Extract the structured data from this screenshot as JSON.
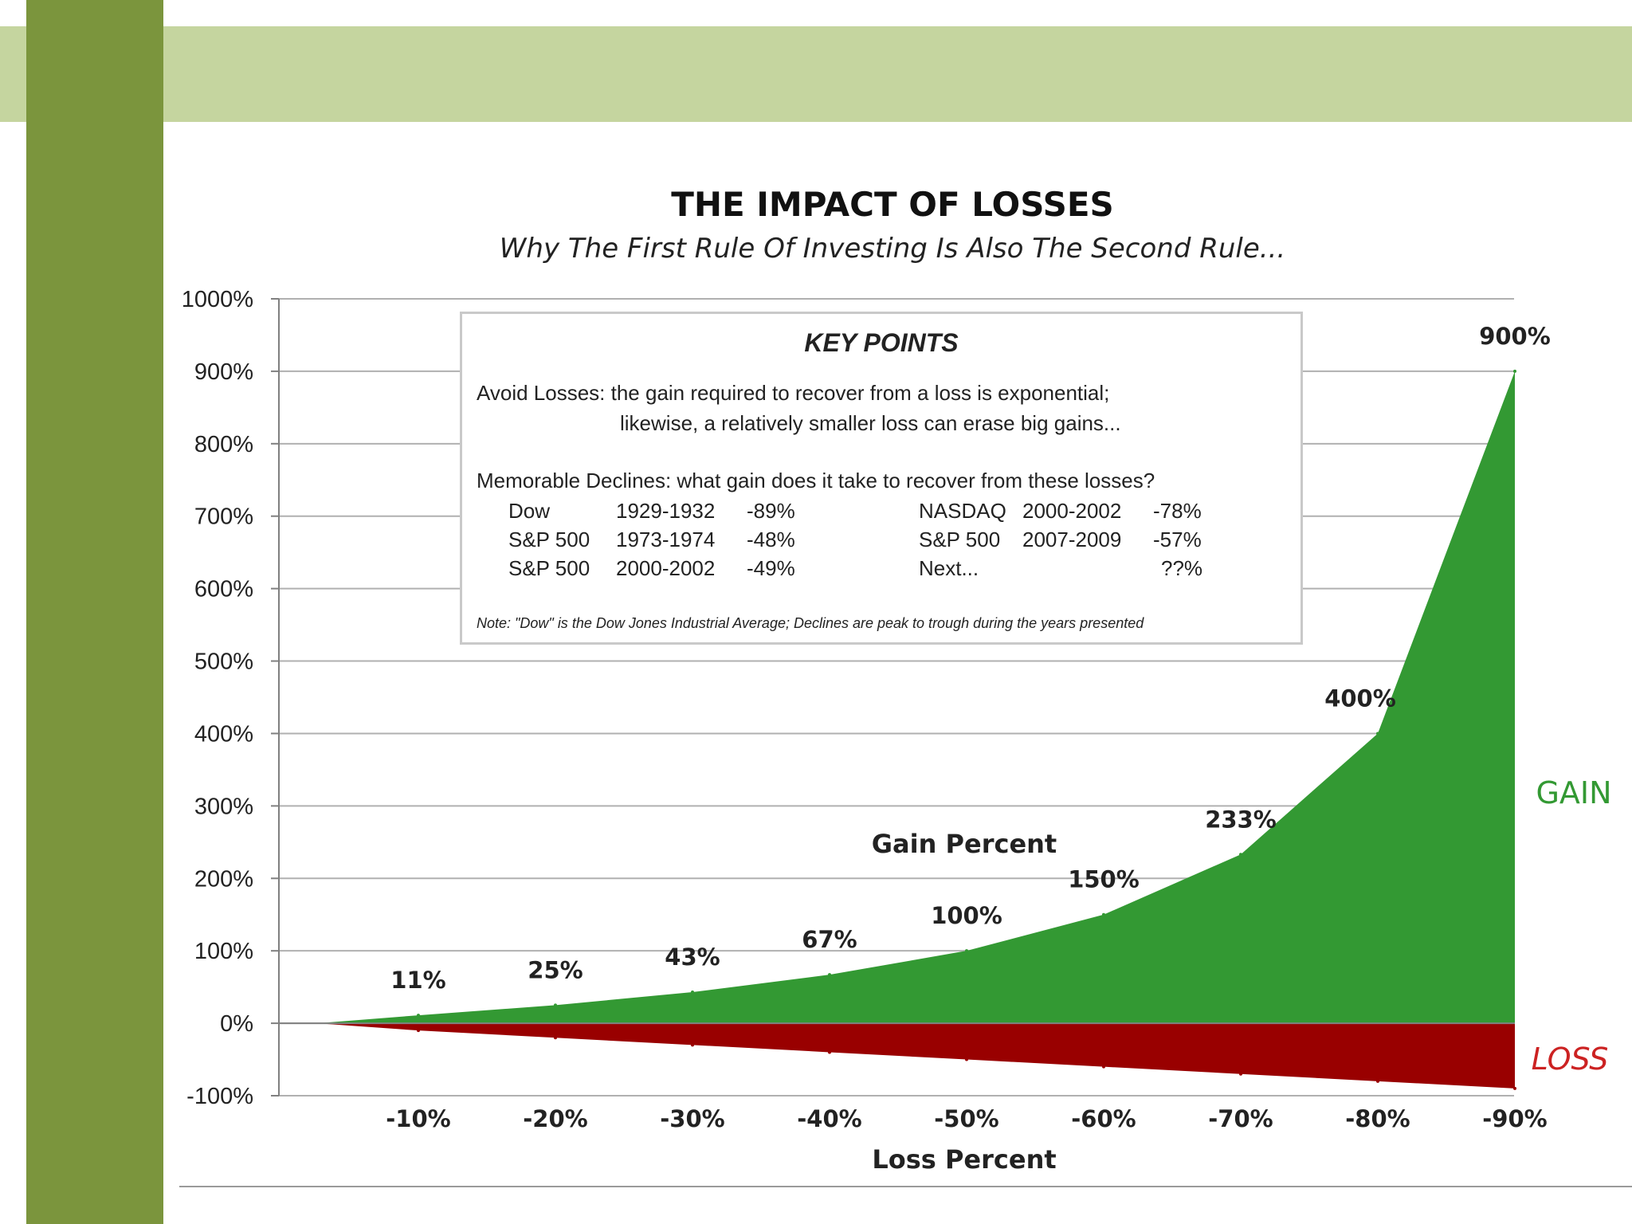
{
  "colors": {
    "gain": "#339933",
    "loss": "#990000",
    "gain_label": "#339933",
    "loss_label": "#cc2222",
    "deco_light": "#c5d59f",
    "deco_dark": "#7b953d"
  },
  "chart_data": {
    "type": "area",
    "title": "THE IMPACT OF LOSSES",
    "subtitle": "Why The First Rule Of Investing Is Also The Second Rule...",
    "xlabel": "Loss Percent",
    "ylabel": "",
    "x_categories": [
      "-10%",
      "-20%",
      "-30%",
      "-40%",
      "-50%",
      "-60%",
      "-70%",
      "-80%",
      "-90%"
    ],
    "ylim": [
      -100,
      1000
    ],
    "y_ticks": [
      -100,
      0,
      100,
      200,
      300,
      400,
      500,
      600,
      700,
      800,
      900,
      1000
    ],
    "y_tick_labels": [
      "-100%",
      "0%",
      "100%",
      "200%",
      "300%",
      "400%",
      "500%",
      "600%",
      "700%",
      "800%",
      "900%",
      "1000%"
    ],
    "grid": true,
    "series": [
      {
        "name": "GAIN",
        "values": [
          11,
          25,
          43,
          67,
          100,
          150,
          233,
          400,
          900
        ],
        "data_labels": [
          "11%",
          "25%",
          "43%",
          "67%",
          "100%",
          "150%",
          "233%",
          "400%",
          "900%"
        ]
      },
      {
        "name": "LOSS",
        "values": [
          -10,
          -20,
          -30,
          -40,
          -50,
          -60,
          -70,
          -80,
          -90
        ]
      }
    ],
    "annotations": {
      "gain_percent": "Gain Percent"
    }
  },
  "key_points": {
    "title": "KEY POINTS",
    "avoid_line1": "Avoid Losses:  the gain required to recover from a loss is exponential;",
    "avoid_line2": "likewise, a relatively smaller loss can erase big gains...",
    "memorable": "Memorable Declines:  what gain does it take to recover from these losses?",
    "declines": [
      {
        "name": "Dow",
        "years": "1929-1932",
        "pct": "-89%"
      },
      {
        "name": "S&P 500",
        "years": "1973-1974",
        "pct": "-48%"
      },
      {
        "name": "S&P 500",
        "years": "2000-2002",
        "pct": "-49%"
      },
      {
        "name": "NASDAQ",
        "years": "2000-2002",
        "pct": "-78%"
      },
      {
        "name": "S&P 500",
        "years": "2007-2009",
        "pct": "-57%"
      },
      {
        "name": "Next...",
        "years": "",
        "pct": "??%"
      }
    ],
    "note": "Note: \"Dow\" is the Dow Jones Industrial Average; Declines are peak to trough during the years presented"
  }
}
